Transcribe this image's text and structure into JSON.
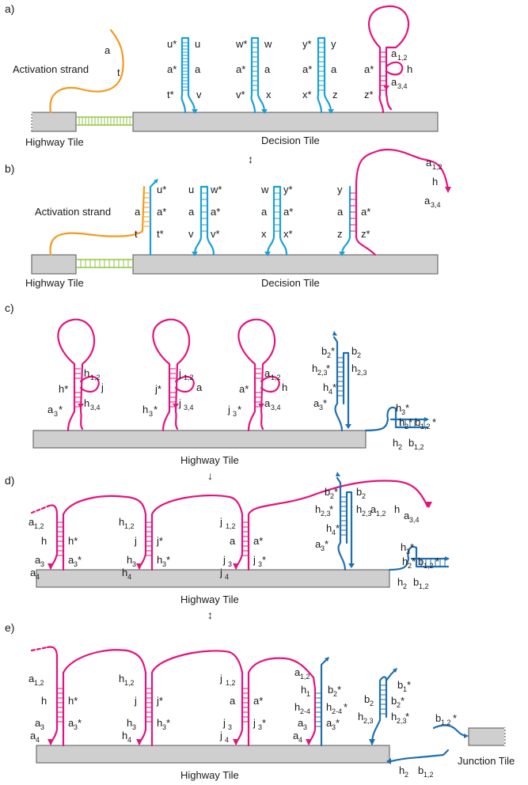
{
  "panels": {
    "a": "a)",
    "b": "b)",
    "c": "c)",
    "d": "d)",
    "e": "e)"
  },
  "tiles": {
    "highway": "Highway Tile",
    "decision": "Decision Tile",
    "junction": "Junction Tile"
  },
  "activation": "Activation strand",
  "colors": {
    "magenta": "#e2137f",
    "cyan": "#1aa0d8",
    "blue": "#1f6fb0",
    "orange": "#f39a1e",
    "green": "#8dc63f"
  },
  "labels": {
    "a": "a",
    "t": "t",
    "u": "u",
    "ustar": "u*",
    "astar": "a*",
    "tstar": "t*",
    "v": "v",
    "vstar": "v*",
    "w": "w",
    "wstar": "w*",
    "x": "x",
    "xstar": "x*",
    "y": "y",
    "ystar": "y*",
    "z": "z",
    "zstar": "z*",
    "h": "h",
    "hstar": "h*",
    "j": "j",
    "jstar": "j*"
  },
  "sub": {
    "a12": [
      "a",
      "1,2"
    ],
    "a34": [
      "a",
      "3,4"
    ],
    "a3": [
      "a",
      "3"
    ],
    "a4": [
      "a",
      "4"
    ],
    "a3s": [
      "a",
      "3",
      "*"
    ],
    "h12": [
      "h",
      "1,2"
    ],
    "h34": [
      "h",
      "3,4"
    ],
    "h3": [
      "h",
      "3"
    ],
    "h4": [
      "h",
      "4"
    ],
    "h3s": [
      "h",
      "3",
      "*"
    ],
    "j12": [
      "j",
      "1,2"
    ],
    "j34": [
      "j",
      "3,4"
    ],
    "j3": [
      "j",
      "3"
    ],
    "j4": [
      "j",
      "4"
    ],
    "j3s": [
      "j",
      "3",
      "*"
    ],
    "b2s": [
      "b",
      "2",
      "*"
    ],
    "b2": [
      "b",
      "2"
    ],
    "h23s": [
      "h",
      "2,3",
      "*"
    ],
    "h23": [
      "h",
      "2,3"
    ],
    "h4s": [
      "h",
      "4",
      "*"
    ],
    "h2s": [
      "h",
      "2",
      "*"
    ],
    "b12s": [
      "b",
      "1,2",
      "*"
    ],
    "h2": [
      "h",
      "2"
    ],
    "b12": [
      "b",
      "1,2"
    ],
    "h1": [
      "h",
      "1"
    ],
    "h24": [
      "h",
      "2-4"
    ],
    "h24s": [
      "h",
      "2-4",
      "*"
    ],
    "b1s": [
      "b",
      "1",
      "*"
    ]
  },
  "arrows": {
    "ab": "↕",
    "cd": "↓",
    "de": "↕"
  }
}
